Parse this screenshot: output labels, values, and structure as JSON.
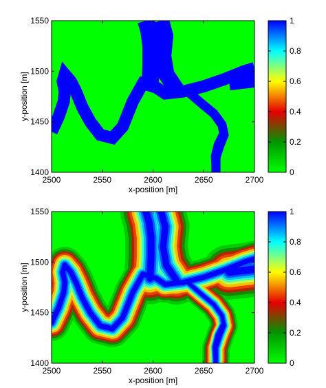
{
  "chart_data": [
    {
      "type": "heatmap",
      "title": "",
      "xlabel": "x-position [m]",
      "ylabel": "y-position [m]",
      "xlim": [
        2500,
        2700
      ],
      "ylim": [
        1400,
        1550
      ],
      "xticks": [
        "2500",
        "2550",
        "2600",
        "2650",
        "2700"
      ],
      "yticks": [
        "1400",
        "1450",
        "1500",
        "1550"
      ],
      "colorbar": {
        "range": [
          0,
          1
        ],
        "ticks": [
          "0",
          "0.2",
          "0.4",
          "0.6",
          "0.8",
          "1"
        ]
      },
      "background_value": 0,
      "channel_value": 1,
      "rendering": "binary",
      "channels": [
        {
          "points": [
            [
              2500,
              1440
            ],
            [
              2507,
              1455
            ],
            [
              2512,
              1470
            ],
            [
              2513,
              1480
            ],
            [
              2511,
              1490
            ],
            [
              2513,
              1497
            ],
            [
              2519,
              1490
            ],
            [
              2524,
              1480
            ],
            [
              2530,
              1465
            ],
            [
              2538,
              1450
            ],
            [
              2548,
              1437
            ],
            [
              2560,
              1434
            ],
            [
              2570,
              1445
            ],
            [
              2580,
              1470
            ],
            [
              2590,
              1488
            ],
            [
              2603,
              1484
            ],
            [
              2612,
              1478
            ],
            [
              2630,
              1480
            ],
            [
              2650,
              1485
            ],
            [
              2670,
              1492
            ],
            [
              2690,
              1500
            ],
            [
              2700,
              1503
            ]
          ],
          "width": 12
        },
        {
          "points": [
            [
              2597,
              1484
            ],
            [
              2598,
              1505
            ],
            [
              2598,
              1525
            ],
            [
              2596,
              1540
            ],
            [
              2593,
              1550
            ]
          ],
          "width": 17
        },
        {
          "points": [
            [
              2623,
              1482
            ],
            [
              2613,
              1497
            ],
            [
              2610,
              1515
            ],
            [
              2612,
              1535
            ],
            [
              2608,
              1550
            ]
          ],
          "width": 16
        },
        {
          "points": [
            [
              2675,
              1490
            ],
            [
              2700,
              1493
            ]
          ],
          "width": 18
        },
        {
          "points": [
            [
              2633,
              1481
            ],
            [
              2648,
              1468
            ],
            [
              2660,
              1458
            ],
            [
              2668,
              1447
            ],
            [
              2670,
              1437
            ],
            [
              2666,
              1427
            ],
            [
              2662,
              1415
            ],
            [
              2662,
              1400
            ]
          ],
          "width": 9
        },
        {
          "points": [
            [
              2669,
              1440
            ],
            [
              2663,
              1428
            ],
            [
              2660,
              1416
            ],
            [
              2661,
              1400
            ]
          ],
          "width": 6
        }
      ]
    },
    {
      "type": "heatmap",
      "title": "",
      "xlabel": "x-position [m]",
      "ylabel": "y-position [m]",
      "xlim": [
        2500,
        2700
      ],
      "ylim": [
        1400,
        1550
      ],
      "xticks": [
        "2500",
        "2550",
        "2600",
        "2650",
        "2700"
      ],
      "yticks": [
        "1400",
        "1450",
        "1500",
        "1550"
      ],
      "colorbar": {
        "range": [
          0,
          1
        ],
        "ticks": [
          "0",
          "0.2",
          "0.4",
          "0.6",
          "0.8",
          "1"
        ]
      },
      "background_value": 0,
      "channel_value": 1,
      "rendering": "smoothed",
      "channels": [
        {
          "points": [
            [
              2500,
              1440
            ],
            [
              2507,
              1455
            ],
            [
              2512,
              1470
            ],
            [
              2513,
              1480
            ],
            [
              2511,
              1490
            ],
            [
              2513,
              1497
            ],
            [
              2519,
              1490
            ],
            [
              2524,
              1480
            ],
            [
              2530,
              1465
            ],
            [
              2538,
              1450
            ],
            [
              2548,
              1437
            ],
            [
              2560,
              1434
            ],
            [
              2570,
              1445
            ],
            [
              2580,
              1470
            ],
            [
              2590,
              1488
            ],
            [
              2603,
              1484
            ],
            [
              2612,
              1478
            ],
            [
              2630,
              1480
            ],
            [
              2650,
              1485
            ],
            [
              2670,
              1492
            ],
            [
              2690,
              1500
            ],
            [
              2700,
              1503
            ]
          ],
          "width": 12
        },
        {
          "points": [
            [
              2597,
              1484
            ],
            [
              2598,
              1505
            ],
            [
              2598,
              1525
            ],
            [
              2596,
              1540
            ],
            [
              2593,
              1550
            ]
          ],
          "width": 17
        },
        {
          "points": [
            [
              2623,
              1482
            ],
            [
              2613,
              1497
            ],
            [
              2610,
              1515
            ],
            [
              2612,
              1535
            ],
            [
              2608,
              1550
            ]
          ],
          "width": 16
        },
        {
          "points": [
            [
              2675,
              1490
            ],
            [
              2700,
              1493
            ]
          ],
          "width": 18
        },
        {
          "points": [
            [
              2633,
              1481
            ],
            [
              2648,
              1468
            ],
            [
              2660,
              1458
            ],
            [
              2668,
              1447
            ],
            [
              2670,
              1437
            ],
            [
              2666,
              1427
            ],
            [
              2662,
              1415
            ],
            [
              2662,
              1400
            ]
          ],
          "width": 9
        },
        {
          "points": [
            [
              2669,
              1440
            ],
            [
              2663,
              1428
            ],
            [
              2660,
              1416
            ],
            [
              2661,
              1400
            ]
          ],
          "width": 6
        }
      ]
    }
  ]
}
